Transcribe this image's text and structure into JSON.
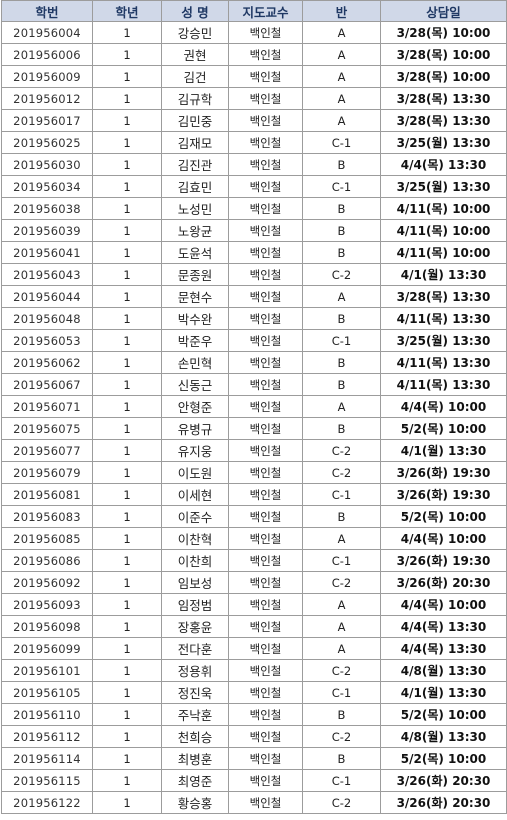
{
  "headers": [
    "학번",
    "학년",
    "성 명",
    "지도교수",
    "반",
    "상담일"
  ],
  "rows": [
    [
      "201956004",
      "1",
      "강승민",
      "백인철",
      "A",
      "3/28(목) 10:00"
    ],
    [
      "201956006",
      "1",
      "권현",
      "백인철",
      "A",
      "3/28(목) 10:00"
    ],
    [
      "201956009",
      "1",
      "김건",
      "백인철",
      "A",
      "3/28(목) 10:00"
    ],
    [
      "201956012",
      "1",
      "김규학",
      "백인철",
      "A",
      "3/28(목) 13:30"
    ],
    [
      "201956017",
      "1",
      "김민중",
      "백인철",
      "A",
      "3/28(목) 13:30"
    ],
    [
      "201956025",
      "1",
      "김재모",
      "백인철",
      "C-1",
      "3/25(월) 13:30"
    ],
    [
      "201956030",
      "1",
      "김진관",
      "백인철",
      "B",
      "4/4(목) 13:30"
    ],
    [
      "201956034",
      "1",
      "김효민",
      "백인철",
      "C-1",
      "3/25(월) 13:30"
    ],
    [
      "201956038",
      "1",
      "노성민",
      "백인철",
      "B",
      "4/11(목) 10:00"
    ],
    [
      "201956039",
      "1",
      "노왕균",
      "백인철",
      "B",
      "4/11(목) 10:00"
    ],
    [
      "201956041",
      "1",
      "도윤석",
      "백인철",
      "B",
      "4/11(목) 10:00"
    ],
    [
      "201956043",
      "1",
      "문종원",
      "백인철",
      "C-2",
      "4/1(월) 13:30"
    ],
    [
      "201956044",
      "1",
      "문현수",
      "백인철",
      "A",
      "3/28(목) 13:30"
    ],
    [
      "201956048",
      "1",
      "박수완",
      "백인철",
      "B",
      "4/11(목) 13:30"
    ],
    [
      "201956053",
      "1",
      "박준우",
      "백인철",
      "C-1",
      "3/25(월) 13:30"
    ],
    [
      "201956062",
      "1",
      "손민혁",
      "백인철",
      "B",
      "4/11(목) 13:30"
    ],
    [
      "201956067",
      "1",
      "신동근",
      "백인철",
      "B",
      "4/11(목) 13:30"
    ],
    [
      "201956071",
      "1",
      "안형준",
      "백인철",
      "A",
      "4/4(목) 10:00"
    ],
    [
      "201956075",
      "1",
      "유병규",
      "백인철",
      "B",
      "5/2(목) 10:00"
    ],
    [
      "201956077",
      "1",
      "유지웅",
      "백인철",
      "C-2",
      "4/1(월) 13:30"
    ],
    [
      "201956079",
      "1",
      "이도원",
      "백인철",
      "C-2",
      "3/26(화) 19:30"
    ],
    [
      "201956081",
      "1",
      "이세현",
      "백인철",
      "C-1",
      "3/26(화) 19:30"
    ],
    [
      "201956083",
      "1",
      "이준수",
      "백인철",
      "B",
      "5/2(목) 10:00"
    ],
    [
      "201956085",
      "1",
      "이찬혁",
      "백인철",
      "A",
      "4/4(목) 10:00"
    ],
    [
      "201956086",
      "1",
      "이찬희",
      "백인철",
      "C-1",
      "3/26(화) 19:30"
    ],
    [
      "201956092",
      "1",
      "임보성",
      "백인철",
      "C-2",
      "3/26(화) 20:30"
    ],
    [
      "201956093",
      "1",
      "임정범",
      "백인철",
      "A",
      "4/4(목) 10:00"
    ],
    [
      "201956098",
      "1",
      "장홍윤",
      "백인철",
      "A",
      "4/4(목) 13:30"
    ],
    [
      "201956099",
      "1",
      "전다훈",
      "백인철",
      "A",
      "4/4(목) 13:30"
    ],
    [
      "201956101",
      "1",
      "정용휘",
      "백인철",
      "C-2",
      "4/8(월) 13:30"
    ],
    [
      "201956105",
      "1",
      "정진욱",
      "백인철",
      "C-1",
      "4/1(월) 13:30"
    ],
    [
      "201956110",
      "1",
      "주낙훈",
      "백인철",
      "B",
      "5/2(목) 10:00"
    ],
    [
      "201956112",
      "1",
      "천희승",
      "백인철",
      "C-2",
      "4/8(월) 13:30"
    ],
    [
      "201956114",
      "1",
      "최병훈",
      "백인철",
      "B",
      "5/2(목) 10:00"
    ],
    [
      "201956115",
      "1",
      "최영준",
      "백인철",
      "C-1",
      "3/26(화) 20:30"
    ],
    [
      "201956122",
      "1",
      "황승홍",
      "백인철",
      "C-2",
      "3/26(화) 20:30"
    ]
  ]
}
